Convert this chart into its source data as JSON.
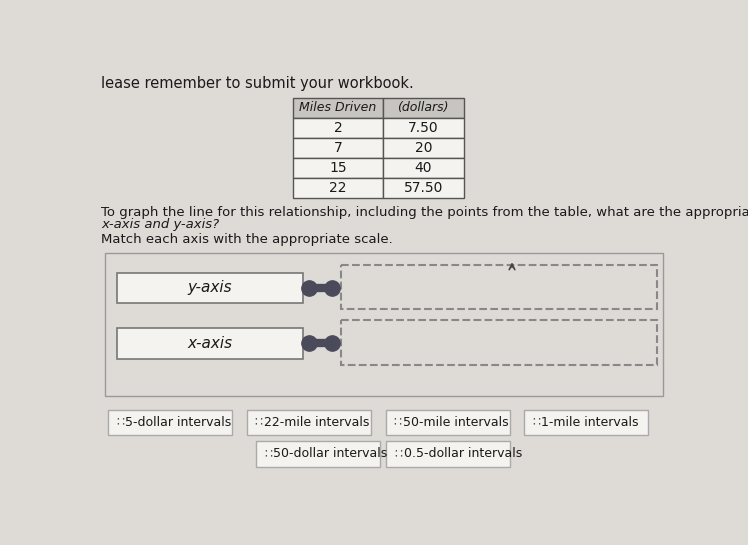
{
  "background_color": "#dedad6",
  "top_text": "lease remember to submit your workbook.",
  "table_headers": [
    "Miles Driven",
    "(dollars)"
  ],
  "table_data": [
    [
      "2",
      "7.50"
    ],
    [
      "7",
      "20"
    ],
    [
      "15",
      "40"
    ],
    [
      "22",
      "57.50"
    ]
  ],
  "question_text1": "To graph the line for this relationship, including the points from the table, what are the appropriate scales for the",
  "question_text2": "x-axis and y-axis?",
  "match_text": "Match each axis with the appropriate scale.",
  "left_labels": [
    "y-axis",
    "x-axis"
  ],
  "option_buttons_row1": [
    "5-dollar intervals",
    "22-mile intervals",
    "50-mile intervals",
    "1-mile intervals"
  ],
  "option_buttons_row2": [
    "50-dollar intervals",
    "0.5-dollar intervals"
  ],
  "text_color": "#1a1a1a",
  "table_header_bg": "#c8c4c0",
  "table_row_bg": "#f5f3f0",
  "table_border": "#555555",
  "big_box_bg": "#dedad6",
  "big_box_border": "#999999",
  "label_box_bg": "#f5f3f0",
  "label_box_border": "#777777",
  "dashed_box_border": "#888888",
  "connector_color": "#4a4a5a",
  "btn_bg": "#f5f3f0",
  "btn_border": "#aaaaaa"
}
